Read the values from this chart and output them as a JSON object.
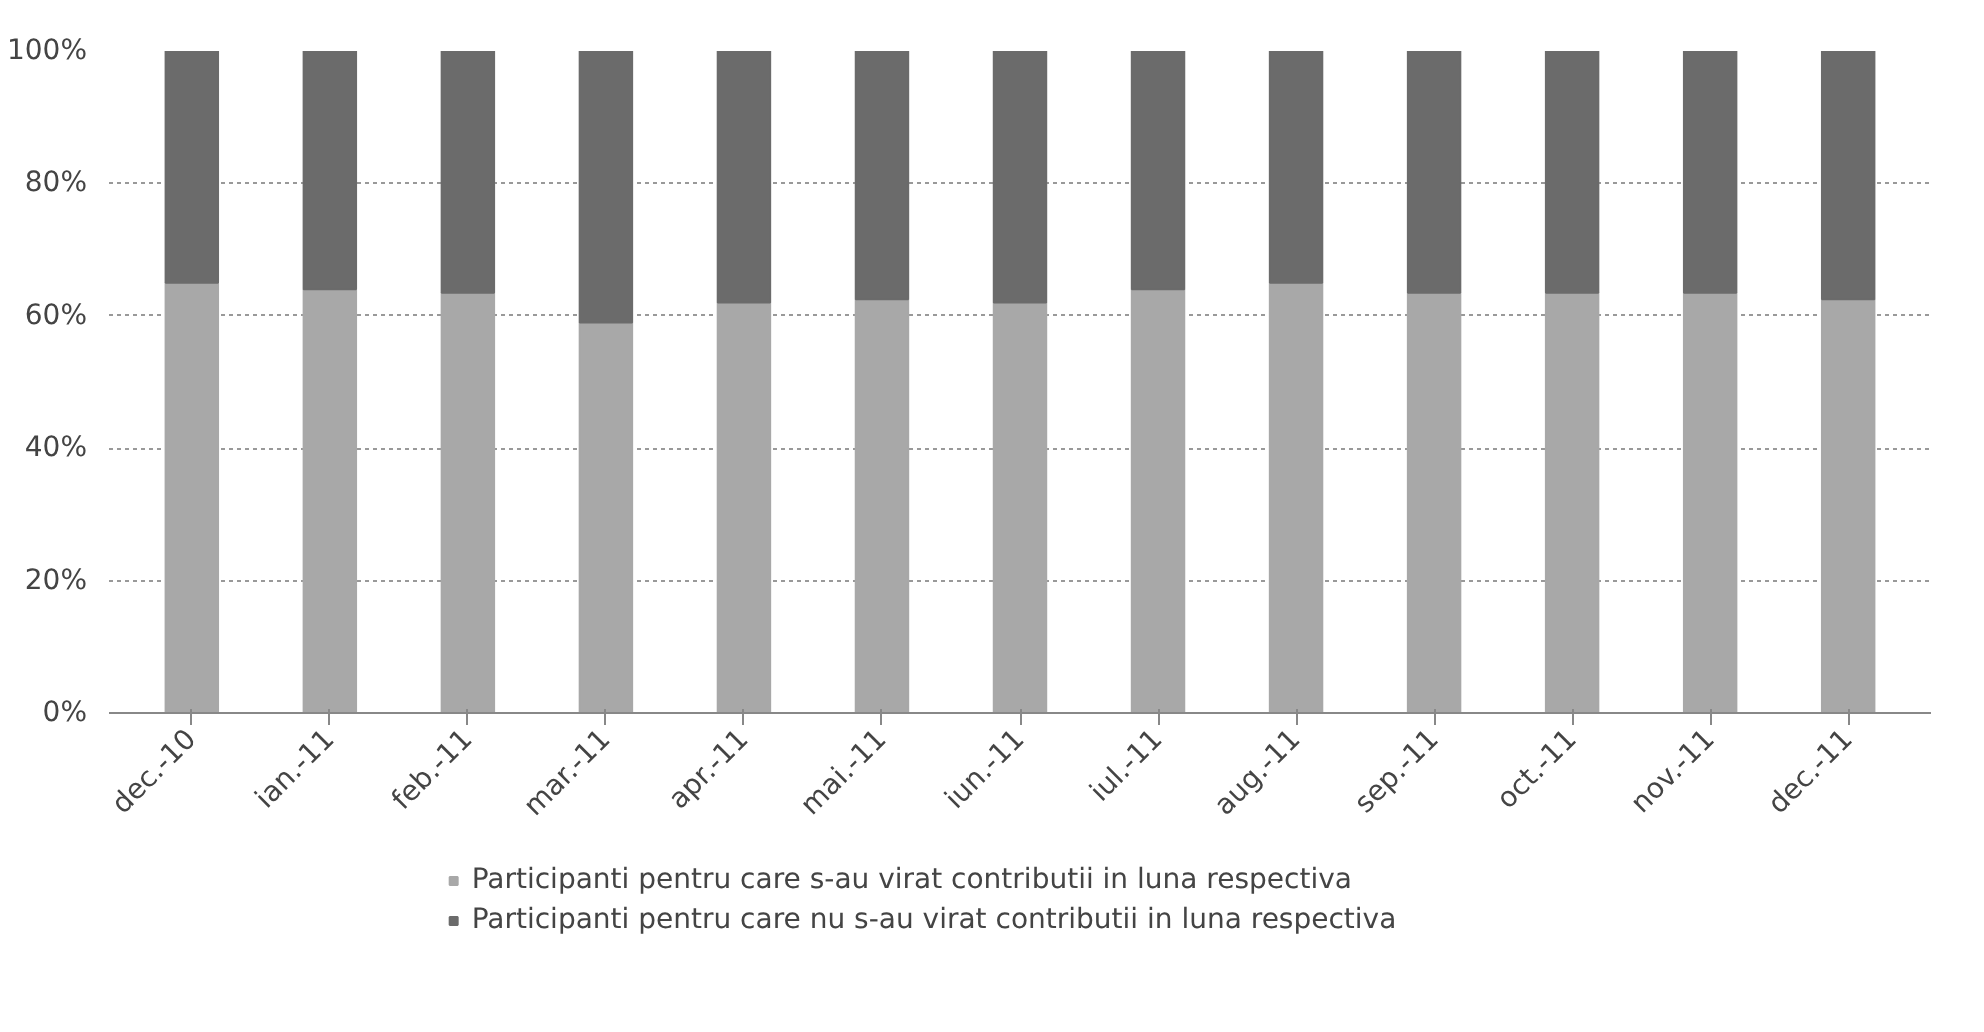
{
  "chart_data": {
    "type": "bar",
    "stacked": true,
    "categories": [
      "dec.-10",
      "ian.-11",
      "feb.-11",
      "mar.-11",
      "apr.-11",
      "mai.-11",
      "iun.-11",
      "iul.-11",
      "aug.-11",
      "sep.-11",
      "oct.-11",
      "nov.-11",
      "dec.-11"
    ],
    "series": [
      {
        "name": "Participanti pentru care s-au virat contributii in luna respectiva",
        "color": "#a8a8a8",
        "values": [
          65,
          64,
          63.5,
          59,
          62,
          62.5,
          62,
          64,
          65,
          63.5,
          63.5,
          63.5,
          62.5
        ]
      },
      {
        "name": "Participanti pentru care nu s-au virat contributii in luna respectiva",
        "color": "#6b6b6b",
        "values": [
          35,
          36,
          36.5,
          41,
          38,
          37.5,
          38,
          36,
          35,
          36.5,
          36.5,
          36.5,
          37.5
        ]
      }
    ],
    "ylim": [
      0,
      100
    ],
    "yticks": [
      {
        "value": 0,
        "label": "0%"
      },
      {
        "value": 20,
        "label": "20%"
      },
      {
        "value": 40,
        "label": "40%"
      },
      {
        "value": 60,
        "label": "60%"
      },
      {
        "value": 80,
        "label": "80%"
      },
      {
        "value": 100,
        "label": "100%"
      }
    ],
    "grid": "y",
    "legend": "bottom"
  }
}
